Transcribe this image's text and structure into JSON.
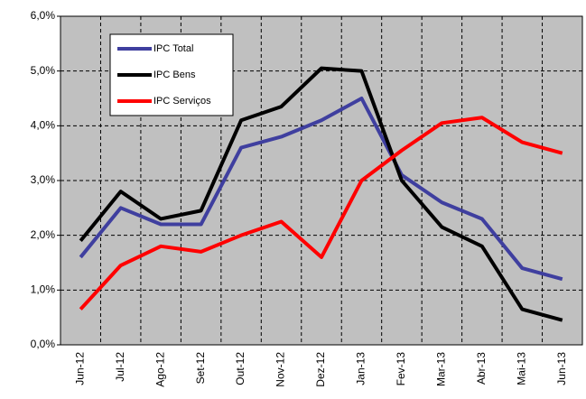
{
  "chart_data": {
    "type": "line",
    "categories": [
      "Jun-12",
      "Jul-12",
      "Ago-12",
      "Set-12",
      "Out-12",
      "Nov-12",
      "Dez-12",
      "Jan-13",
      "Fev-13",
      "Mar-13",
      "Abr-13",
      "Mai-13",
      "Jun-13"
    ],
    "series": [
      {
        "name": "IPC Total",
        "color": "#3f3f9f",
        "values": [
          1.6,
          2.5,
          2.2,
          2.2,
          3.6,
          3.8,
          4.1,
          4.5,
          3.1,
          2.6,
          2.3,
          1.4,
          1.2
        ]
      },
      {
        "name": "IPC Bens",
        "color": "#000000",
        "values": [
          1.9,
          2.8,
          2.3,
          2.45,
          4.1,
          4.35,
          5.05,
          5.0,
          3.0,
          2.15,
          1.8,
          0.65,
          0.45
        ]
      },
      {
        "name": "IPC Serviços",
        "color": "#ff0000",
        "values": [
          0.65,
          1.45,
          1.8,
          1.7,
          2.0,
          2.25,
          1.6,
          3.0,
          3.55,
          4.05,
          4.15,
          3.7,
          3.5
        ]
      }
    ],
    "ylim": [
      0,
      6
    ],
    "yticks": [
      {
        "value": 0,
        "label": "0,0%"
      },
      {
        "value": 1,
        "label": "1,0%"
      },
      {
        "value": 2,
        "label": "2,0%"
      },
      {
        "value": 3,
        "label": "3,0%"
      },
      {
        "value": 4,
        "label": "4,0%"
      },
      {
        "value": 5,
        "label": "5,0%"
      },
      {
        "value": 6,
        "label": "6,0%"
      }
    ],
    "grid": true,
    "legend": "upper-left"
  }
}
